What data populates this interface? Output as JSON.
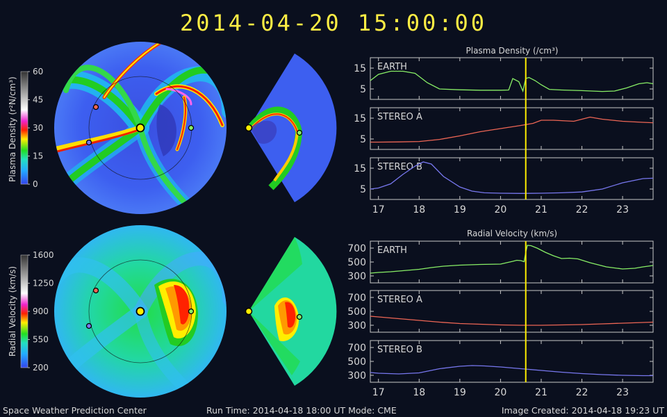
{
  "title": "2014-04-20  15:00:00",
  "colorbars": {
    "density": {
      "label": "Plasma Density (r²N/cm³)",
      "ticks": [
        "60",
        "45",
        "30",
        "15",
        "0"
      ]
    },
    "velocity": {
      "label": "Radial Velocity (km/s)",
      "ticks": [
        "1600",
        "1250",
        "900",
        "550",
        "200"
      ]
    }
  },
  "density_panel": {
    "title": "Plasma Density (/cm³)",
    "panels": [
      {
        "name": "EARTH",
        "ticks": [
          "15",
          "5"
        ],
        "color": "#88ee66"
      },
      {
        "name": "STEREO A",
        "ticks": [
          "15",
          "5"
        ],
        "color": "#ee6655"
      },
      {
        "name": "STEREO B",
        "ticks": [
          "15",
          "5"
        ],
        "color": "#7777ee"
      }
    ]
  },
  "velocity_panel": {
    "title": "Radial Velocity (km/s)",
    "panels": [
      {
        "name": "EARTH",
        "ticks": [
          "700",
          "500",
          "300"
        ],
        "color": "#88ee66"
      },
      {
        "name": "STEREO A",
        "ticks": [
          "700",
          "500",
          "300"
        ],
        "color": "#ee6655"
      },
      {
        "name": "STEREO B",
        "ticks": [
          "700",
          "500",
          "300"
        ],
        "color": "#7777ee"
      }
    ]
  },
  "x_ticks": [
    "17",
    "18",
    "19",
    "20",
    "21",
    "22",
    "23"
  ],
  "chart_data": [
    {
      "type": "line",
      "title": "Plasma Density (/cm³)",
      "xlim": [
        16.8,
        23.75
      ],
      "ylim": [
        0,
        20
      ],
      "current_time": 20.62,
      "series": [
        {
          "name": "EARTH",
          "x": [
            16.8,
            17.0,
            17.3,
            17.6,
            17.9,
            18.2,
            18.5,
            19.0,
            19.5,
            20.0,
            20.2,
            20.3,
            20.45,
            20.55,
            20.62,
            20.7,
            20.85,
            21.0,
            21.2,
            21.5,
            22.0,
            22.5,
            22.8,
            23.1,
            23.4,
            23.6,
            23.75
          ],
          "values": [
            9,
            12,
            13.5,
            13.5,
            12.5,
            8,
            5,
            4.6,
            4.4,
            4.4,
            4.5,
            10,
            8.5,
            4,
            10,
            10.5,
            9,
            7,
            4.8,
            4.5,
            4.2,
            3.8,
            4,
            5.5,
            7.5,
            8,
            7.5
          ]
        },
        {
          "name": "STEREO A",
          "x": [
            16.8,
            17.0,
            17.5,
            18.0,
            18.5,
            19.0,
            19.5,
            20.0,
            20.5,
            20.8,
            21.0,
            21.3,
            21.8,
            22.2,
            22.5,
            23.0,
            23.5,
            23.75
          ],
          "values": [
            3.5,
            3.5,
            3.6,
            3.8,
            4.8,
            6.5,
            8.5,
            10,
            11.5,
            12.5,
            14,
            14,
            13.5,
            15.5,
            14.5,
            13.5,
            13,
            12.8
          ]
        },
        {
          "name": "STEREO B",
          "x": [
            16.8,
            17.0,
            17.3,
            17.6,
            17.9,
            18.1,
            18.3,
            18.6,
            19.0,
            19.3,
            19.6,
            20.0,
            20.5,
            21.0,
            21.5,
            22.0,
            22.5,
            23.0,
            23.5,
            23.75
          ],
          "values": [
            5,
            5.5,
            7.5,
            12,
            16,
            18,
            17,
            11,
            6,
            4,
            3.2,
            3,
            2.9,
            3,
            3.2,
            3.6,
            5,
            8,
            10,
            10.2
          ]
        }
      ]
    },
    {
      "type": "line",
      "title": "Radial Velocity (km/s)",
      "xlim": [
        16.8,
        23.75
      ],
      "ylim": [
        200,
        800
      ],
      "current_time": 20.62,
      "series": [
        {
          "name": "EARTH",
          "x": [
            16.8,
            17.0,
            17.3,
            17.6,
            18.0,
            18.3,
            18.6,
            19.0,
            19.5,
            20.0,
            20.3,
            20.4,
            20.5,
            20.58,
            20.62,
            20.66,
            20.75,
            20.9,
            21.1,
            21.3,
            21.5,
            21.7,
            21.9,
            22.2,
            22.6,
            23.0,
            23.3,
            23.5,
            23.75
          ],
          "values": [
            340,
            350,
            360,
            375,
            395,
            420,
            440,
            455,
            465,
            470,
            510,
            525,
            520,
            505,
            640,
            740,
            735,
            700,
            640,
            590,
            550,
            555,
            545,
            490,
            430,
            400,
            410,
            430,
            450
          ]
        },
        {
          "name": "STEREO A",
          "x": [
            16.8,
            17.0,
            17.5,
            18.0,
            18.5,
            19.0,
            19.5,
            20.0,
            20.5,
            21.0,
            21.5,
            22.0,
            22.5,
            23.0,
            23.5,
            23.75
          ],
          "values": [
            430,
            420,
            395,
            370,
            345,
            325,
            315,
            305,
            300,
            300,
            305,
            310,
            320,
            330,
            340,
            345
          ]
        },
        {
          "name": "STEREO B",
          "x": [
            16.8,
            17.0,
            17.5,
            18.0,
            18.5,
            19.0,
            19.3,
            19.6,
            20.0,
            20.5,
            21.0,
            21.5,
            22.0,
            22.5,
            23.0,
            23.5,
            23.75
          ],
          "values": [
            340,
            330,
            320,
            335,
            395,
            430,
            440,
            435,
            420,
            395,
            370,
            345,
            325,
            310,
            300,
            295,
            295
          ]
        }
      ]
    }
  ],
  "footer": {
    "left": "Space Weather Prediction Center",
    "center": "Run Time: 2014-04-18 18:00 UT   Mode: CME",
    "right": "Image Created: 2014-04-18 19:23 UT"
  }
}
